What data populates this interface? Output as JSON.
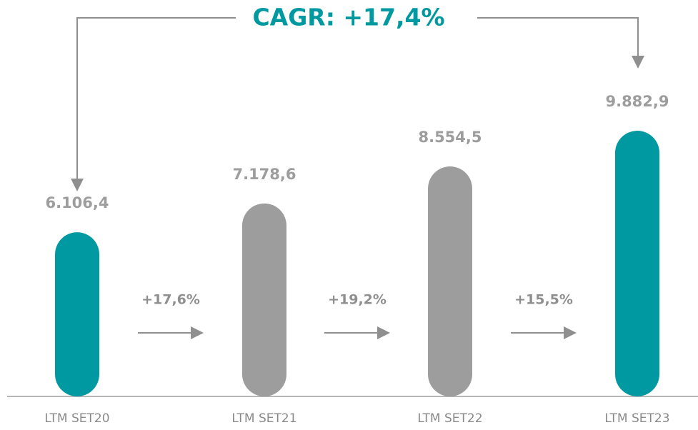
{
  "chart_data": {
    "type": "bar",
    "title": "CAGR: +17,4%",
    "categories": [
      "LTM SET20",
      "LTM SET21",
      "LTM SET22",
      "LTM SET23"
    ],
    "values": [
      6106.4,
      7178.6,
      8554.5,
      9882.9
    ],
    "value_labels": [
      "6.106,4",
      "7.178,6",
      "8.554,5",
      "9.882,9"
    ],
    "colors": [
      "#0099a1",
      "#9d9d9d",
      "#9d9d9d",
      "#0099a1"
    ],
    "growth": {
      "values": [
        17.6,
        19.2,
        15.5
      ],
      "value_labels": [
        "+17,6%",
        "+19,2%",
        "+15,5%"
      ]
    },
    "ylim": [
      0,
      11000
    ]
  }
}
